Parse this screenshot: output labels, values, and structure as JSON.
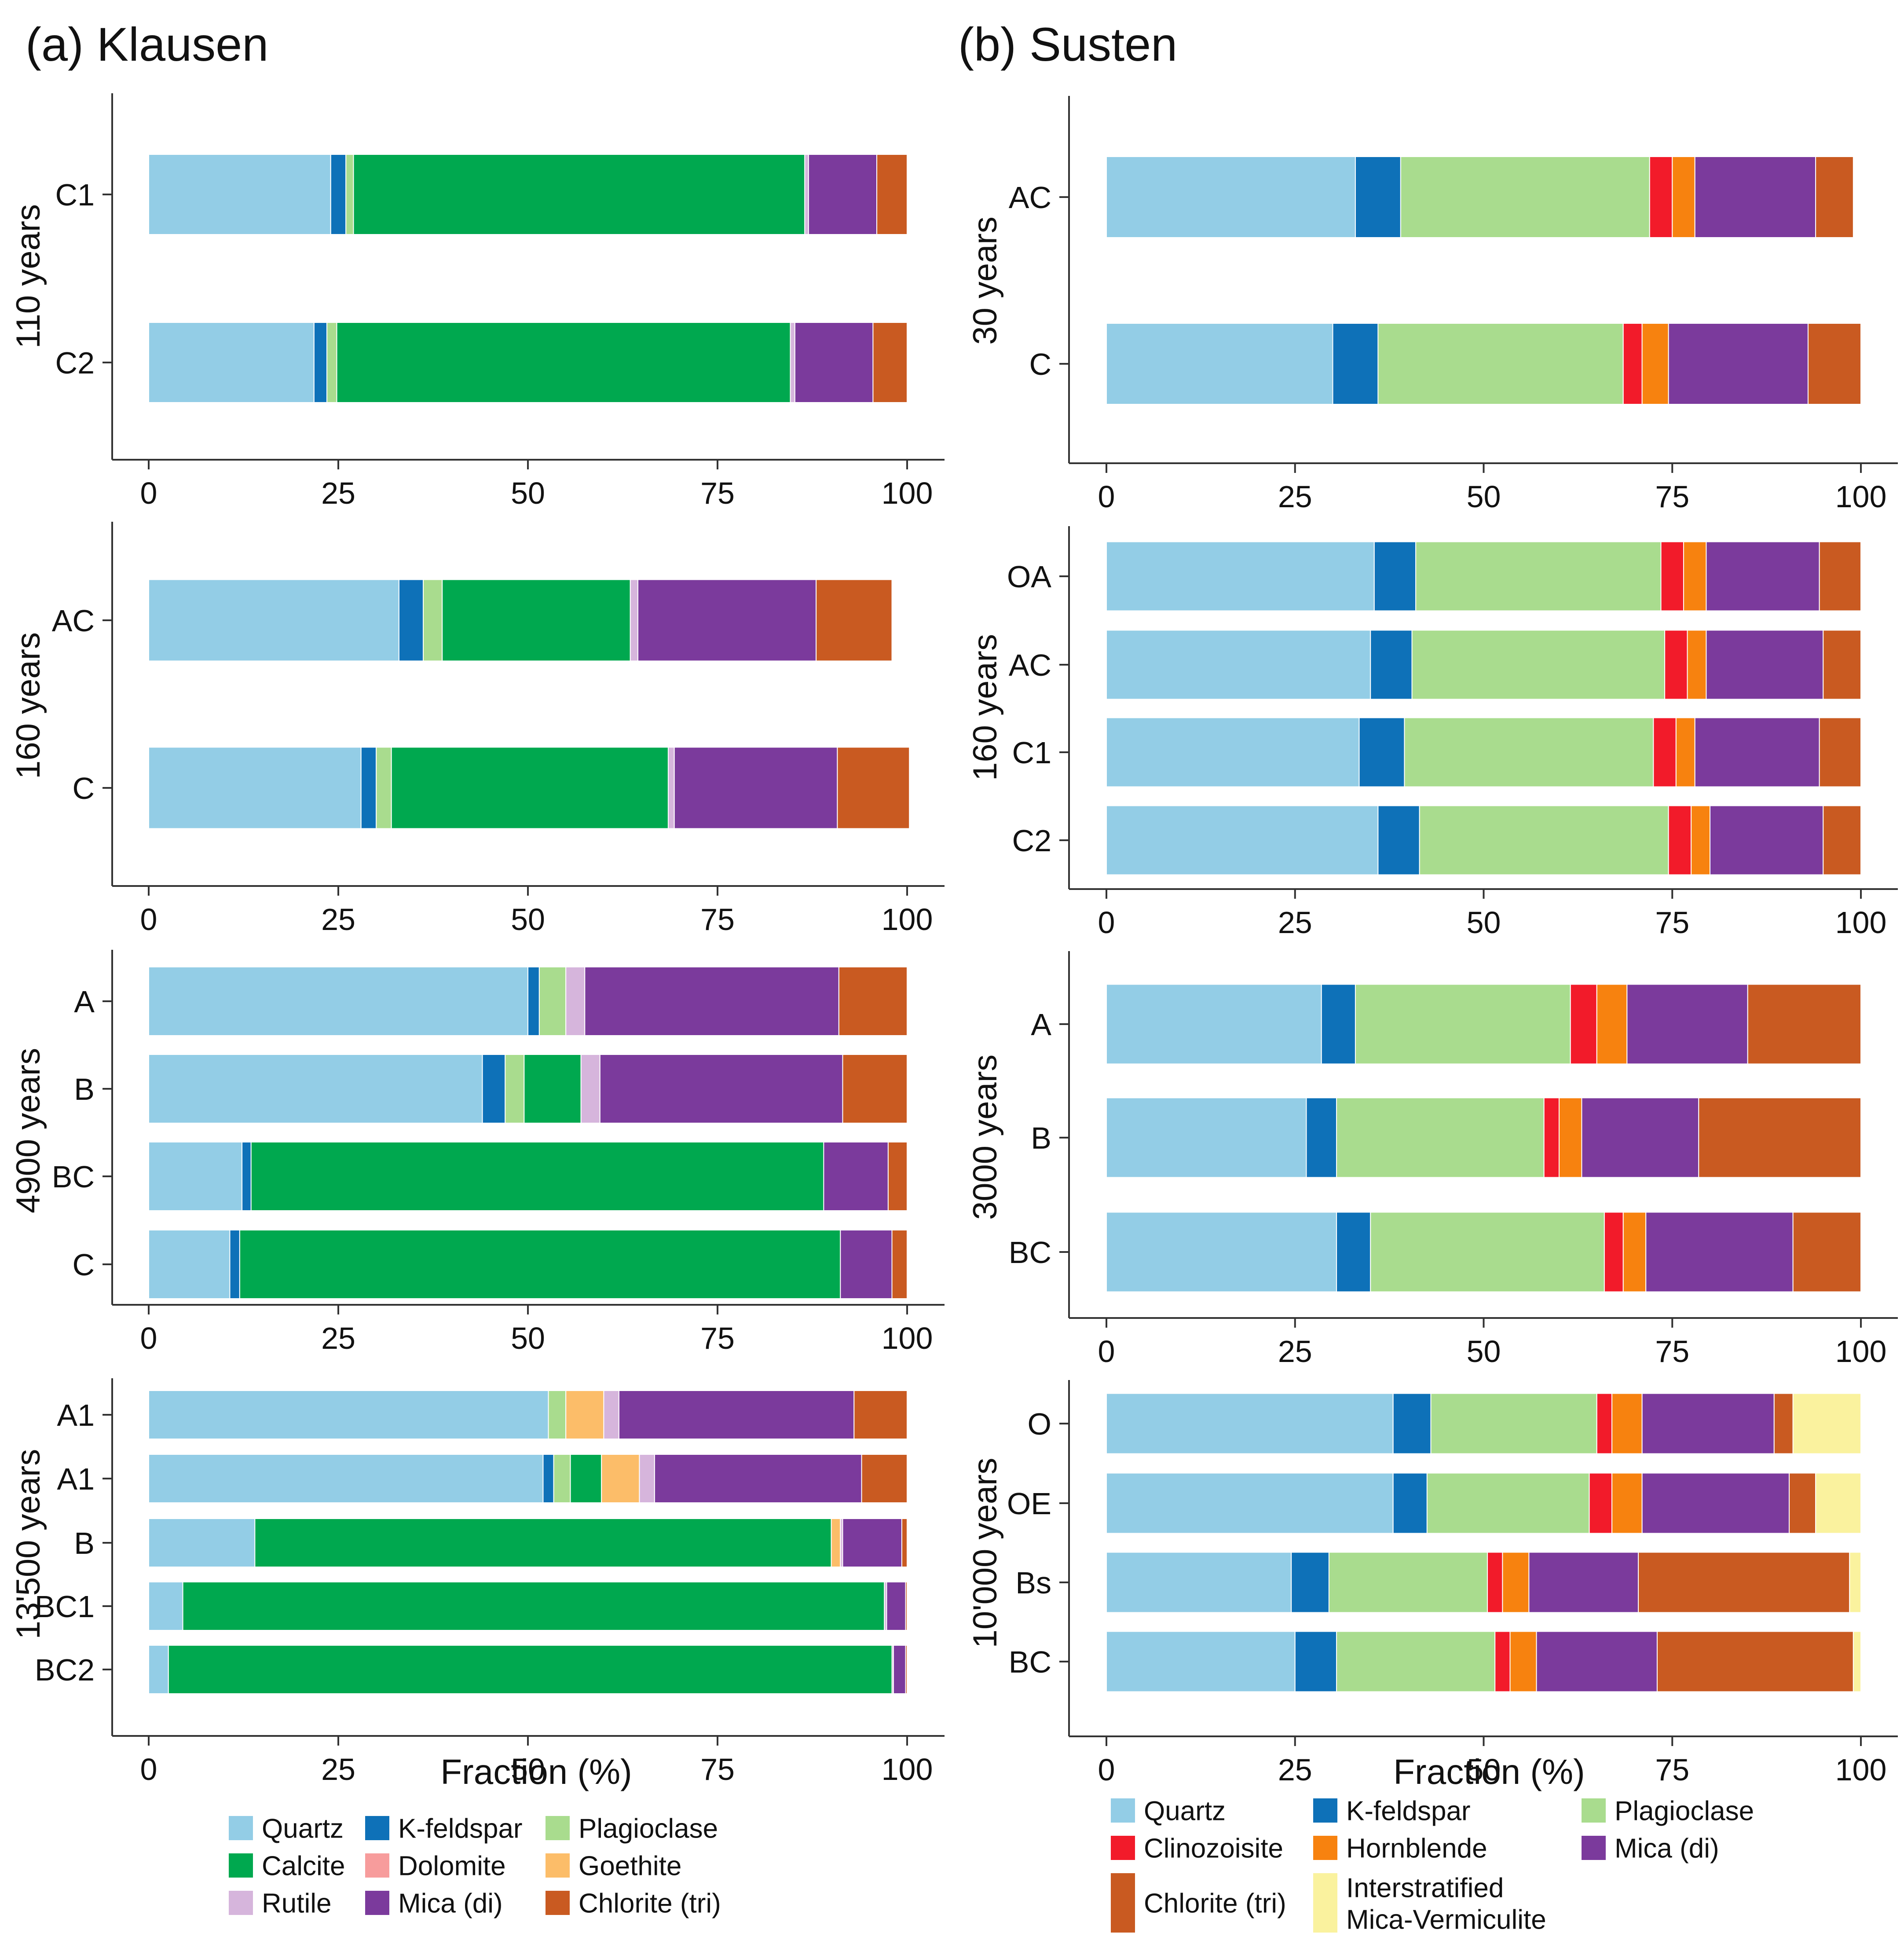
{
  "chart_data": {
    "type": "bar",
    "orientation": "horizontal",
    "stacked": true,
    "xlabel": "Fraction (%)",
    "xlim": [
      0,
      100
    ],
    "xticks": [
      "0",
      "25",
      "50",
      "75",
      "100"
    ],
    "colors": {
      "Quartz": "#93cde6",
      "K-feldspar": "#0e71b8",
      "Plagioclase": "#a9dc8e",
      "Calcite": "#00a84f",
      "Dolomite": "#f79c9c",
      "Goethite": "#fcbd69",
      "Rutile": "#d6b5dc",
      "Mica (di)": "#7b3a9c",
      "Chlorite (tri)": "#c95a21",
      "Clinozoisite": "#f21b2a",
      "Hornblende": "#f7820f",
      "Interstratified Mica-Vermiculite": "#faf29e"
    },
    "panels": [
      {
        "title": "(a) Klausen",
        "minerals": [
          "Quartz",
          "K-feldspar",
          "Plagioclase",
          "Calcite",
          "Dolomite",
          "Goethite",
          "Rutile",
          "Mica (di)",
          "Chlorite (tri)"
        ],
        "groups": [
          {
            "age": "110 years",
            "bars": [
              {
                "label": "C1",
                "values": [
                  24,
                  2,
                  1,
                  59.5,
                  0,
                  0,
                  0.5,
                  9,
                  4
                ]
              },
              {
                "label": "C2",
                "values": [
                  21.8,
                  1.7,
                  1.3,
                  59.8,
                  0,
                  0,
                  0.6,
                  10.3,
                  4.5
                ]
              }
            ]
          },
          {
            "age": "160 years",
            "bars": [
              {
                "label": "AC",
                "values": [
                  33,
                  3.2,
                  2.5,
                  24.8,
                  0,
                  0,
                  1,
                  23.5,
                  10
                ]
              },
              {
                "label": "C",
                "values": [
                  28,
                  2,
                  2,
                  36.5,
                  0,
                  0,
                  0.8,
                  21.5,
                  9.5
                ]
              }
            ]
          },
          {
            "age": "4900 years",
            "bars": [
              {
                "label": "A",
                "values": [
                  50,
                  1.5,
                  3.5,
                  0,
                  0,
                  0,
                  2.5,
                  33.5,
                  9
                ]
              },
              {
                "label": "B",
                "values": [
                  44,
                  3,
                  2.5,
                  7.5,
                  0,
                  0,
                  2.5,
                  32,
                  8.5
                ]
              },
              {
                "label": "BC",
                "values": [
                  12.3,
                  1.2,
                  0,
                  75.5,
                  0,
                  0,
                  0,
                  8.5,
                  2.5
                ]
              },
              {
                "label": "C",
                "values": [
                  10.7,
                  1.3,
                  0,
                  79.2,
                  0,
                  0,
                  0,
                  6.8,
                  2
                ]
              }
            ]
          },
          {
            "age": "13'500 years",
            "bars": [
              {
                "label": "A1",
                "values": [
                  52.7,
                  0,
                  2.3,
                  0,
                  0,
                  5,
                  2,
                  31,
                  7
                ]
              },
              {
                "label": "A1",
                "values": [
                  52,
                  1.4,
                  2.2,
                  4.1,
                  0,
                  5,
                  2,
                  27.3,
                  6
                ]
              },
              {
                "label": "B",
                "values": [
                  14,
                  0,
                  0,
                  76,
                  0,
                  1.2,
                  0.3,
                  7.8,
                  0.7
                ]
              },
              {
                "label": "BC1",
                "values": [
                  4.5,
                  0,
                  0,
                  92.5,
                  0,
                  0,
                  0.3,
                  2.5,
                  0.2
                ]
              },
              {
                "label": "BC2",
                "values": [
                  2.6,
                  0,
                  0,
                  95.4,
                  0,
                  0,
                  0.2,
                  1.6,
                  0.2
                ]
              }
            ]
          }
        ]
      },
      {
        "title": "(b) Susten",
        "minerals": [
          "Quartz",
          "K-feldspar",
          "Plagioclase",
          "Clinozoisite",
          "Hornblende",
          "Mica (di)",
          "Chlorite (tri)",
          "Interstratified Mica-Vermiculite"
        ],
        "groups": [
          {
            "age": "30 years",
            "bars": [
              {
                "label": "AC",
                "values": [
                  33,
                  6,
                  33,
                  3,
                  3,
                  16,
                  5,
                  0
                ]
              },
              {
                "label": "C",
                "values": [
                  30,
                  6,
                  32.5,
                  2.5,
                  3.5,
                  18.5,
                  7,
                  0
                ]
              }
            ]
          },
          {
            "age": "160 years",
            "bars": [
              {
                "label": "OA",
                "values": [
                  35.5,
                  5.5,
                  32.5,
                  3,
                  3,
                  15,
                  5.5,
                  0
                ]
              },
              {
                "label": "AC",
                "values": [
                  35,
                  5.5,
                  33.5,
                  3,
                  2.5,
                  15.5,
                  5,
                  0
                ]
              },
              {
                "label": "C1",
                "values": [
                  33.5,
                  6,
                  33,
                  3,
                  2.5,
                  16.5,
                  5.5,
                  0
                ]
              },
              {
                "label": "C2",
                "values": [
                  36,
                  5.5,
                  33,
                  3,
                  2.5,
                  15,
                  5,
                  0
                ]
              }
            ]
          },
          {
            "age": "3000 years",
            "bars": [
              {
                "label": "A",
                "values": [
                  28.5,
                  4.5,
                  28.5,
                  3.5,
                  4,
                  16,
                  15,
                  0
                ]
              },
              {
                "label": "B",
                "values": [
                  26.5,
                  4,
                  27.5,
                  2,
                  3,
                  15.5,
                  21.5,
                  0
                ]
              },
              {
                "label": "BC",
                "values": [
                  30.5,
                  4.5,
                  31,
                  2.5,
                  3,
                  19.5,
                  9,
                  0
                ]
              }
            ]
          },
          {
            "age": "10'000 years",
            "bars": [
              {
                "label": "O",
                "values": [
                  38,
                  5,
                  22,
                  2,
                  4,
                  17.5,
                  2.5,
                  9
                ]
              },
              {
                "label": "OE",
                "values": [
                  38,
                  4.5,
                  21.5,
                  3,
                  4,
                  19.5,
                  3.5,
                  6
                ]
              },
              {
                "label": "Bs",
                "values": [
                  24.5,
                  5,
                  21,
                  2,
                  3.5,
                  14.5,
                  28,
                  1.5
                ]
              },
              {
                "label": "BC",
                "values": [
                  25,
                  5.5,
                  21,
                  2,
                  3.5,
                  16,
                  26,
                  1
                ]
              }
            ]
          }
        ]
      }
    ]
  },
  "legend_a": [
    {
      "label": "Quartz",
      "color": "#93cde6"
    },
    {
      "label": "K-feldspar",
      "color": "#0e71b8"
    },
    {
      "label": "Plagioclase",
      "color": "#a9dc8e"
    },
    {
      "label": "Calcite",
      "color": "#00a84f"
    },
    {
      "label": "Dolomite",
      "color": "#f79c9c"
    },
    {
      "label": "Goethite",
      "color": "#fcbd69"
    },
    {
      "label": "Rutile",
      "color": "#d6b5dc"
    },
    {
      "label": "Mica (di)",
      "color": "#7b3a9c"
    },
    {
      "label": "Chlorite (tri)",
      "color": "#c95a21"
    }
  ],
  "legend_b": [
    {
      "label": "Quartz",
      "color": "#93cde6"
    },
    {
      "label": "K-feldspar",
      "color": "#0e71b8"
    },
    {
      "label": "Plagioclase",
      "color": "#a9dc8e"
    },
    {
      "label": "Clinozoisite",
      "color": "#f21b2a"
    },
    {
      "label": "Hornblende",
      "color": "#f7820f"
    },
    {
      "label": "Mica (di)",
      "color": "#7b3a9c"
    },
    {
      "label": "Chlorite (tri)",
      "color": "#c95a21"
    },
    {
      "label": "Interstratified Mica-Vermiculite",
      "color": "#faf29e",
      "lines": [
        "Interstratified",
        "Mica-Vermiculite"
      ]
    }
  ]
}
